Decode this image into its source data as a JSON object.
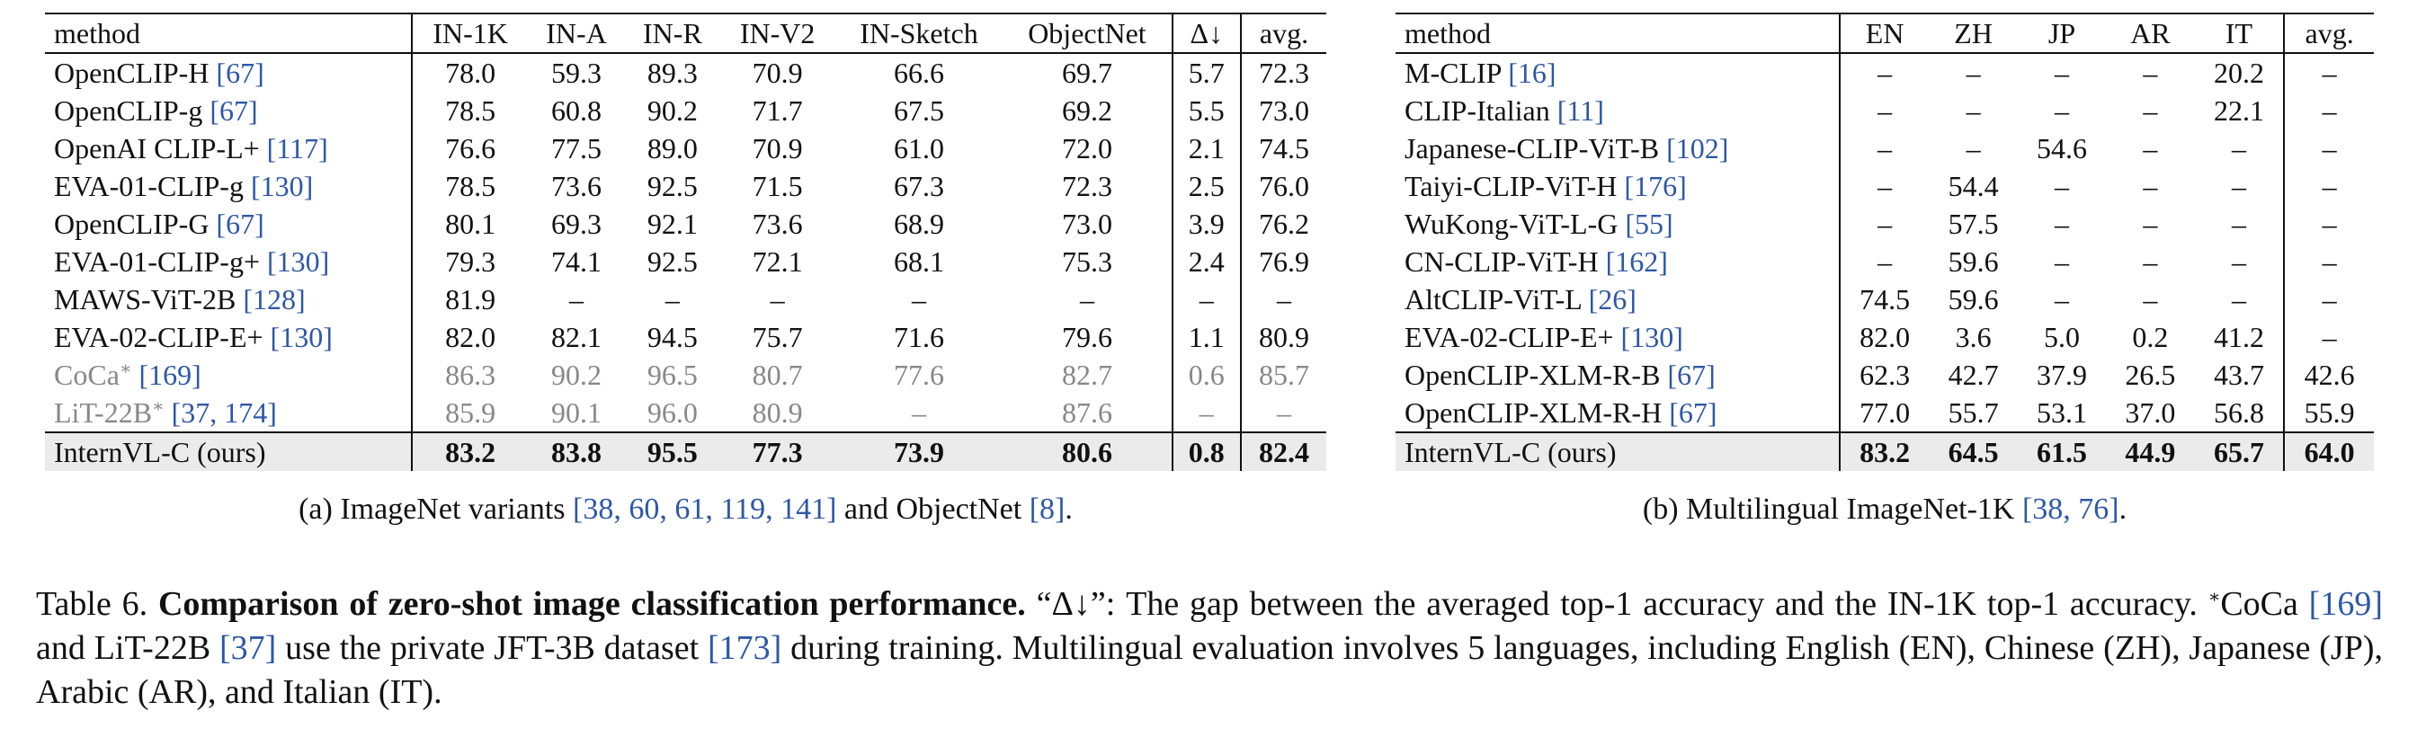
{
  "table_a": {
    "headers": [
      "method",
      "IN-1K",
      "IN-A",
      "IN-R",
      "IN-V2",
      "IN-Sketch",
      "ObjectNet",
      "Δ↓",
      "avg."
    ],
    "rows": [
      {
        "name": "OpenCLIP-H",
        "refs": "[67]",
        "sup": "",
        "cells": [
          "78.0",
          "59.3",
          "89.3",
          "70.9",
          "66.6",
          "69.7",
          "5.7",
          "72.3"
        ]
      },
      {
        "name": "OpenCLIP-g",
        "refs": "[67]",
        "sup": "",
        "cells": [
          "78.5",
          "60.8",
          "90.2",
          "71.7",
          "67.5",
          "69.2",
          "5.5",
          "73.0"
        ]
      },
      {
        "name": "OpenAI CLIP-L+",
        "refs": "[117]",
        "sup": "",
        "cells": [
          "76.6",
          "77.5",
          "89.0",
          "70.9",
          "61.0",
          "72.0",
          "2.1",
          "74.5"
        ]
      },
      {
        "name": "EVA-01-CLIP-g",
        "refs": "[130]",
        "sup": "",
        "cells": [
          "78.5",
          "73.6",
          "92.5",
          "71.5",
          "67.3",
          "72.3",
          "2.5",
          "76.0"
        ]
      },
      {
        "name": "OpenCLIP-G",
        "refs": "[67]",
        "sup": "",
        "cells": [
          "80.1",
          "69.3",
          "92.1",
          "73.6",
          "68.9",
          "73.0",
          "3.9",
          "76.2"
        ]
      },
      {
        "name": "EVA-01-CLIP-g+",
        "refs": "[130]",
        "sup": "",
        "cells": [
          "79.3",
          "74.1",
          "92.5",
          "72.1",
          "68.1",
          "75.3",
          "2.4",
          "76.9"
        ]
      },
      {
        "name": "MAWS-ViT-2B",
        "refs": "[128]",
        "sup": "",
        "cells": [
          "81.9",
          "–",
          "–",
          "–",
          "–",
          "–",
          "–",
          "–"
        ]
      },
      {
        "name": "EVA-02-CLIP-E+",
        "refs": "[130]",
        "sup": "",
        "cells": [
          "82.0",
          "82.1",
          "94.5",
          "75.7",
          "71.6",
          "79.6",
          "1.1",
          "80.9"
        ]
      },
      {
        "name": "CoCa",
        "refs": "[169]",
        "sup": "∗",
        "cells": [
          "86.3",
          "90.2",
          "96.5",
          "80.7",
          "77.6",
          "82.7",
          "0.6",
          "85.7"
        ]
      },
      {
        "name": "LiT-22B",
        "refs": "[37, 174]",
        "sup": "∗",
        "cells": [
          "85.9",
          "90.1",
          "96.0",
          "80.9",
          "–",
          "87.6",
          "–",
          "–"
        ]
      },
      {
        "name": "InternVL-C (ours)",
        "refs": "",
        "sup": "",
        "cells": [
          "83.2",
          "83.8",
          "95.5",
          "77.3",
          "73.9",
          "80.6",
          "0.8",
          "82.4"
        ]
      }
    ],
    "caption_prefix": "(a) ImageNet variants ",
    "caption_refs1": "[38, 60, 61, 119, 141]",
    "caption_mid": " and ObjectNet ",
    "caption_refs2": "[8]",
    "caption_suffix": "."
  },
  "table_b": {
    "headers": [
      "method",
      "EN",
      "ZH",
      "JP",
      "AR",
      "IT",
      "avg."
    ],
    "rows": [
      {
        "name": "M-CLIP",
        "refs": "[16]",
        "cells": [
          "–",
          "–",
          "–",
          "–",
          "20.2",
          "–"
        ]
      },
      {
        "name": "CLIP-Italian",
        "refs": "[11]",
        "cells": [
          "–",
          "–",
          "–",
          "–",
          "22.1",
          "–"
        ]
      },
      {
        "name": "Japanese-CLIP-ViT-B",
        "refs": "[102]",
        "cells": [
          "–",
          "–",
          "54.6",
          "–",
          "–",
          "–"
        ]
      },
      {
        "name": "Taiyi-CLIP-ViT-H",
        "refs": "[176]",
        "cells": [
          "–",
          "54.4",
          "–",
          "–",
          "–",
          "–"
        ]
      },
      {
        "name": "WuKong-ViT-L-G",
        "refs": "[55]",
        "cells": [
          "–",
          "57.5",
          "–",
          "–",
          "–",
          "–"
        ]
      },
      {
        "name": "CN-CLIP-ViT-H",
        "refs": "[162]",
        "cells": [
          "–",
          "59.6",
          "–",
          "–",
          "–",
          "–"
        ]
      },
      {
        "name": "AltCLIP-ViT-L",
        "refs": "[26]",
        "cells": [
          "74.5",
          "59.6",
          "–",
          "–",
          "–",
          "–"
        ]
      },
      {
        "name": "EVA-02-CLIP-E+",
        "refs": "[130]",
        "cells": [
          "82.0",
          "3.6",
          "5.0",
          "0.2",
          "41.2",
          "–"
        ]
      },
      {
        "name": "OpenCLIP-XLM-R-B",
        "refs": "[67]",
        "cells": [
          "62.3",
          "42.7",
          "37.9",
          "26.5",
          "43.7",
          "42.6"
        ]
      },
      {
        "name": "OpenCLIP-XLM-R-H",
        "refs": "[67]",
        "cells": [
          "77.0",
          "55.7",
          "53.1",
          "37.0",
          "56.8",
          "55.9"
        ]
      },
      {
        "name": "InternVL-C (ours)",
        "refs": "",
        "cells": [
          "83.2",
          "64.5",
          "61.5",
          "44.9",
          "65.7",
          "64.0"
        ]
      }
    ],
    "caption_prefix": "(b) Multilingual ImageNet-1K ",
    "caption_refs": "[38, 76]",
    "caption_suffix": "."
  },
  "caption": {
    "label": "Table 6. ",
    "bold": "Comparison of zero-shot image classification performance.",
    "t1": " “Δ↓”: The gap between the averaged top-1 accuracy and the IN-1K top-1 accuracy. ",
    "sup": "∗",
    "t2": "CoCa ",
    "r1": "[169]",
    "t3": " and LiT-22B ",
    "r2": "[37]",
    "t4": " use the private JFT-3B dataset ",
    "r3": "[173]",
    "t5": " during training. Multilingual evaluation involves 5 languages, including English (EN), Chinese (ZH), Japanese (JP), Arabic (AR), and Italian (IT)."
  }
}
